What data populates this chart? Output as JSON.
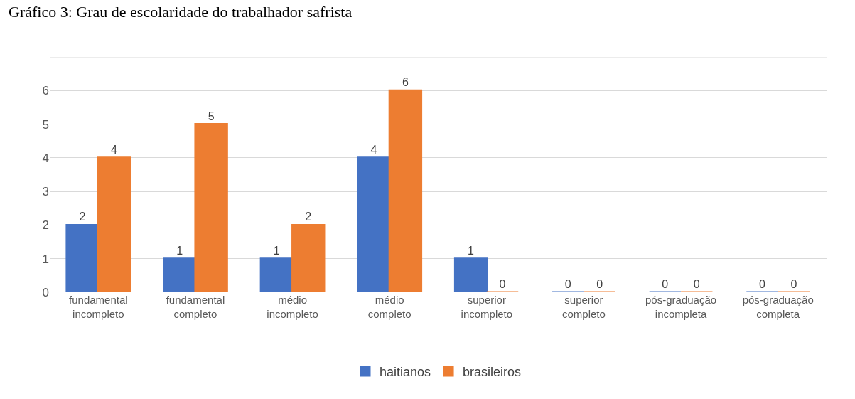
{
  "chart_data": {
    "type": "bar",
    "title": "Gráfico 3: Grau de escolaridade do trabalhador safrista",
    "categories": [
      "fundamental incompleto",
      "fundamental completo",
      "médio incompleto",
      "médio completo",
      "superior incompleto",
      "superior completo",
      "pós-graduação incompleta",
      "pós-graduação completa"
    ],
    "series": [
      {
        "name": "haitianos",
        "color": "#4472c4",
        "values": [
          2,
          1,
          1,
          4,
          1,
          0,
          0,
          0
        ]
      },
      {
        "name": "brasileiros",
        "color": "#ed7d31",
        "values": [
          4,
          5,
          2,
          6,
          0,
          0,
          0,
          0
        ]
      }
    ],
    "ylim": [
      0,
      7
    ],
    "yticks": [
      0,
      1,
      2,
      3,
      4,
      5,
      6,
      {
        "value": 7,
        "label": null
      }
    ],
    "grid": "y",
    "legend": "bottom",
    "data_labels": true
  }
}
